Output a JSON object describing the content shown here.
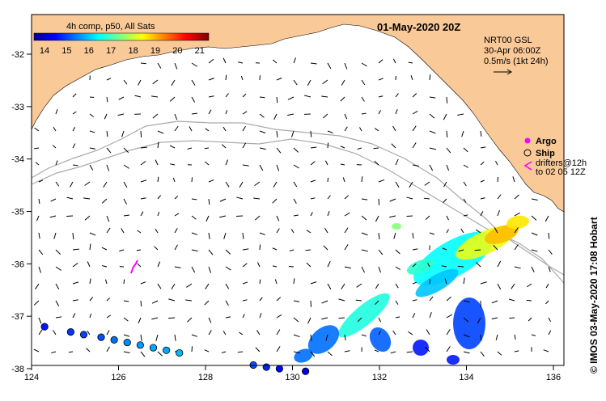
{
  "title": "01-May-2020 20Z",
  "colorbar": {
    "label": "4h comp, p50, All Sats",
    "ticks": [
      "14",
      "15",
      "16",
      "17",
      "18",
      "19",
      "20",
      "21"
    ]
  },
  "info": {
    "line1": "NRT00 GSL",
    "line2": "30-Apr 06:00Z",
    "line3": "0.5m/s (1kt 24h)"
  },
  "legend": {
    "argo": "Argo",
    "ship": "Ship",
    "drifters_line1": "drifters@12h",
    "drifters_line2": "to 02 05 12Z"
  },
  "side_label": "© IMOS 03-May-2020 17:08 Hobart",
  "x_axis": {
    "ticks": [
      "124",
      "126",
      "128",
      "130",
      "132",
      "134",
      "136"
    ]
  },
  "y_axis": {
    "ticks": [
      "-32",
      "-33",
      "-34",
      "-35",
      "-36",
      "-37",
      "-38"
    ]
  },
  "colors": {
    "land": "#f9c998",
    "ocean": "#ffffff",
    "isobath": "#aaaaaa",
    "drifter": "#ff00ff"
  },
  "drifter_track_points": [
    {
      "lon": 124.3,
      "lat": -37.2,
      "temp": 15.0
    },
    {
      "lon": 124.9,
      "lat": -37.3,
      "temp": 15.2
    },
    {
      "lon": 125.2,
      "lat": -37.35,
      "temp": 15.3
    },
    {
      "lon": 125.6,
      "lat": -37.4,
      "temp": 15.4
    },
    {
      "lon": 125.9,
      "lat": -37.45,
      "temp": 15.6
    },
    {
      "lon": 126.2,
      "lat": -37.5,
      "temp": 15.8
    },
    {
      "lon": 126.5,
      "lat": -37.55,
      "temp": 15.9
    },
    {
      "lon": 126.8,
      "lat": -37.6,
      "temp": 16.0
    },
    {
      "lon": 127.1,
      "lat": -37.65,
      "temp": 16.0
    },
    {
      "lon": 127.4,
      "lat": -37.7,
      "temp": 16.1
    },
    {
      "lon": 129.1,
      "lat": -37.93,
      "temp": 15.4
    },
    {
      "lon": 129.4,
      "lat": -37.97,
      "temp": 15.1
    },
    {
      "lon": 129.7,
      "lat": -38.0,
      "temp": 14.9
    },
    {
      "lon": 130.3,
      "lat": -38.05,
      "temp": 14.7
    }
  ]
}
